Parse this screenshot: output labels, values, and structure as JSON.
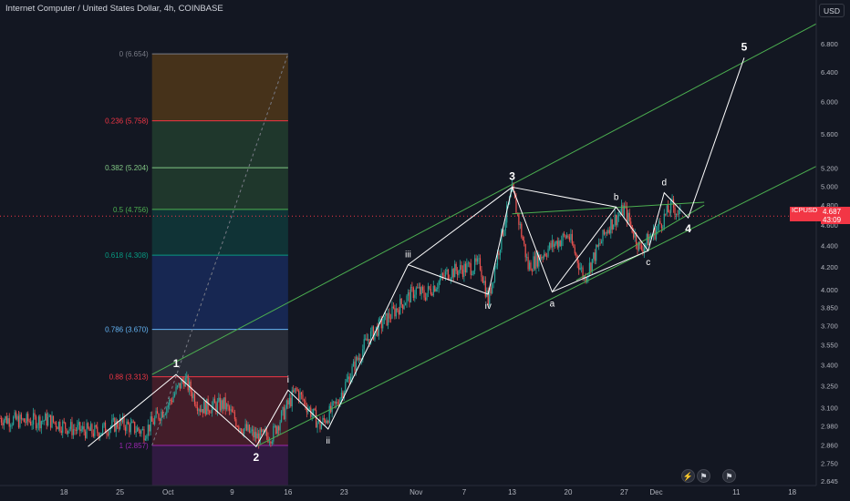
{
  "header": {
    "title": "Internet Computer / United States Dollar, 4h, COINBASE",
    "currency": "USD"
  },
  "last_price": {
    "symbol": "ICPUSD",
    "price": "4.687",
    "countdown": "43:09"
  },
  "colors": {
    "background": "#131722",
    "up": "#26a69a",
    "down": "#ef5350",
    "wave_lines": "#ffffff",
    "channel": "#4caf50",
    "price_line": "#f23645"
  },
  "footer_icons": [
    "lightning-icon",
    "flag-icon",
    "flag-icon"
  ],
  "chart_data": {
    "type": "candlestick",
    "title": "Internet Computer / United States Dollar, 4h, COINBASE",
    "y_scale": "log",
    "ylim": [
      2.62,
      7.3
    ],
    "y_ticks": [
      "2.645",
      "2.750",
      "2.860",
      "2.980",
      "3.100",
      "3.250",
      "3.400",
      "3.550",
      "3.700",
      "3.850",
      "4.000",
      "4.200",
      "4.400",
      "4.600",
      "4.800",
      "5.000",
      "5.200",
      "5.600",
      "6.000",
      "6.400",
      "6.800"
    ],
    "x_ticks": [
      {
        "label": "18",
        "date": "2023-09-18"
      },
      {
        "label": "25",
        "date": "2023-09-25"
      },
      {
        "label": "Oct",
        "date": "2023-10-01"
      },
      {
        "label": "9",
        "date": "2023-10-09"
      },
      {
        "label": "16",
        "date": "2023-10-16"
      },
      {
        "label": "23",
        "date": "2023-10-23"
      },
      {
        "label": "Nov",
        "date": "2023-11-01"
      },
      {
        "label": "7",
        "date": "2023-11-07"
      },
      {
        "label": "13",
        "date": "2023-11-13"
      },
      {
        "label": "20",
        "date": "2023-11-20"
      },
      {
        "label": "27",
        "date": "2023-11-27"
      },
      {
        "label": "Dec",
        "date": "2023-12-01"
      },
      {
        "label": "11",
        "date": "2023-12-11"
      },
      {
        "label": "18",
        "date": "2023-12-18"
      }
    ],
    "xlim": [
      "2023-09-10",
      "2023-12-21"
    ],
    "price_path": [
      [
        "2023-09-10",
        3.03
      ],
      [
        "2023-09-13",
        3.01
      ],
      [
        "2023-09-16",
        3.02
      ],
      [
        "2023-09-19",
        2.96
      ],
      [
        "2023-09-22",
        2.94
      ],
      [
        "2023-09-25",
        3.0
      ],
      [
        "2023-09-28",
        2.94
      ],
      [
        "2023-10-01",
        3.12
      ],
      [
        "2023-10-03",
        3.3
      ],
      [
        "2023-10-05",
        3.1
      ],
      [
        "2023-10-08",
        3.12
      ],
      [
        "2023-10-10",
        2.98
      ],
      [
        "2023-10-12",
        2.91
      ],
      [
        "2023-10-14",
        2.92
      ],
      [
        "2023-10-17",
        3.22
      ],
      [
        "2023-10-20",
        2.98
      ],
      [
        "2023-10-22",
        3.12
      ],
      [
        "2023-10-26",
        3.6
      ],
      [
        "2023-10-29",
        3.8
      ],
      [
        "2023-11-01",
        4.0
      ],
      [
        "2023-11-02",
        3.95
      ],
      [
        "2023-11-05",
        4.15
      ],
      [
        "2023-11-09",
        4.22
      ],
      [
        "2023-11-10",
        3.9
      ],
      [
        "2023-11-13",
        4.95
      ],
      [
        "2023-11-15",
        4.2
      ],
      [
        "2023-11-18",
        4.4
      ],
      [
        "2023-11-20",
        4.5
      ],
      [
        "2023-11-22",
        4.1
      ],
      [
        "2023-11-25",
        4.58
      ],
      [
        "2023-11-27",
        4.76
      ],
      [
        "2023-11-29",
        4.36
      ],
      [
        "2023-12-01",
        4.55
      ],
      [
        "2023-12-03",
        4.8
      ],
      [
        "2023-12-04",
        4.687
      ]
    ],
    "fibonacci": {
      "levels": [
        {
          "label": "0 (6.654)",
          "value": 6.654,
          "color": "#787b86"
        },
        {
          "label": "0.236 (5.758)",
          "value": 5.758,
          "color": "#f23645"
        },
        {
          "label": "0.382 (5.204)",
          "value": 5.204,
          "color": "#81c784"
        },
        {
          "label": "0.5 (4.756)",
          "value": 4.756,
          "color": "#4caf50"
        },
        {
          "label": "0.618 (4.308)",
          "value": 4.308,
          "color": "#089981"
        },
        {
          "label": "0.786 (3.670)",
          "value": 3.67,
          "color": "#64b5f6"
        },
        {
          "label": "0.88 (3.313)",
          "value": 3.313,
          "color": "#f23645"
        },
        {
          "label": "1 (2.857)",
          "value": 2.857,
          "color": "#9c27b0"
        }
      ],
      "zone_colors": [
        "#f23645",
        "#ff9800",
        "#4caf50",
        "#4caf50",
        "#089981",
        "#2962ff",
        "#787b86",
        "#f23645",
        "#9c27b0"
      ],
      "start_date": "2023-09-29",
      "end_date": "2023-10-16"
    },
    "wave_path": [
      {
        "date": "2023-09-21",
        "price": 2.85,
        "label": ""
      },
      {
        "date": "2023-10-02",
        "price": 3.33,
        "label": "1"
      },
      {
        "date": "2023-10-12",
        "price": 2.85,
        "label": "2"
      },
      {
        "date": "2023-10-16",
        "price": 3.22,
        "label": "i"
      },
      {
        "date": "2023-10-21",
        "price": 2.96,
        "label": "ii"
      },
      {
        "date": "2023-10-31",
        "price": 4.22,
        "label": "iii"
      },
      {
        "date": "2023-11-10",
        "price": 3.96,
        "label": "iv"
      },
      {
        "date": "2023-11-13",
        "price": 4.99,
        "label": "3"
      },
      {
        "date": "2023-11-18",
        "price": 3.98,
        "label": "a"
      },
      {
        "date": "2023-11-26",
        "price": 4.78,
        "label": "b"
      },
      {
        "date": "2023-11-30",
        "price": 4.35,
        "label": "c"
      },
      {
        "date": "2023-12-02",
        "price": 4.93,
        "label": "d"
      },
      {
        "date": "2023-12-05",
        "price": 4.67,
        "label": "4"
      },
      {
        "date": "2023-12-12",
        "price": 6.6,
        "label": "5"
      }
    ],
    "channel_lines": [
      [
        [
          "2023-09-29",
          3.33
        ],
        [
          "2023-12-21",
          7.1
        ]
      ],
      [
        [
          "2023-10-12",
          2.85
        ],
        [
          "2023-12-21",
          5.22
        ]
      ],
      [
        [
          "2023-11-13",
          4.71
        ],
        [
          "2023-12-07",
          4.83
        ]
      ],
      [
        [
          "2023-11-21",
          4.08
        ],
        [
          "2023-12-07",
          4.8
        ]
      ]
    ],
    "current_price": 4.687
  }
}
